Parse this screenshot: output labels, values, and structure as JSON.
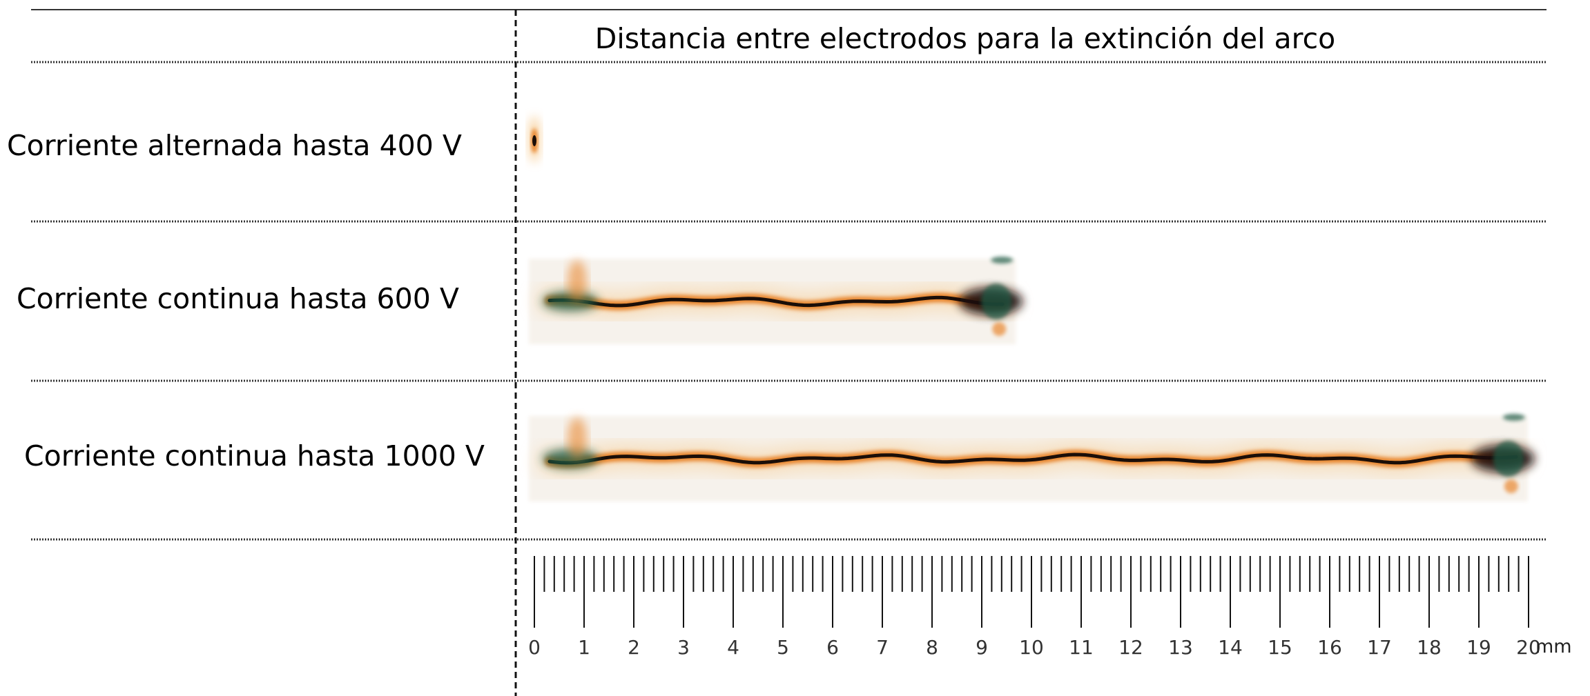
{
  "title": "Distancia entre electrodos para la extinción del arco",
  "rows": [
    {
      "label": "Corriente alternada hasta 400 V",
      "arc_length_mm": 0.25
    },
    {
      "label": "Corriente continua hasta 600 V",
      "arc_length_mm": 9.6
    },
    {
      "label": "Corriente continua hasta 1000 V",
      "arc_length_mm": 19.9
    }
  ],
  "ruler": {
    "unit": "mm",
    "min": 0,
    "max": 20,
    "minor_step": 0.2,
    "tick_labels": [
      "0",
      "1",
      "2",
      "3",
      "4",
      "5",
      "6",
      "7",
      "8",
      "9",
      "10",
      "11",
      "12",
      "13",
      "14",
      "15",
      "16",
      "17",
      "18",
      "19",
      "20"
    ]
  },
  "colors": {
    "arc_core": "#1a0e08",
    "arc_glow": "#e8862e",
    "arc_halo": "#f7c98c",
    "arc_electrode": "#1f5a45",
    "lines": "#222222"
  }
}
